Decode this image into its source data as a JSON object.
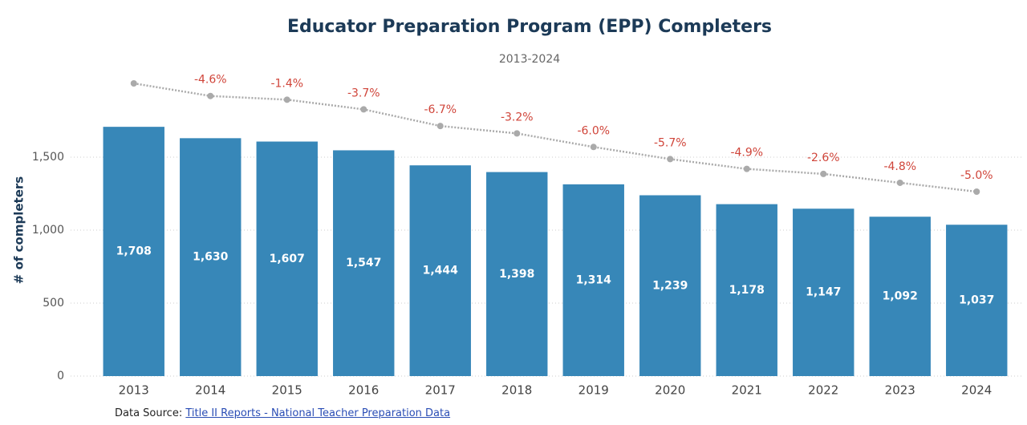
{
  "chart_data": {
    "type": "bar",
    "title": "Educator Preparation Program (EPP) Completers",
    "subtitle": "2013-2024",
    "y_label": "# of completers",
    "categories": [
      "2013",
      "2014",
      "2015",
      "2016",
      "2017",
      "2018",
      "2019",
      "2020",
      "2021",
      "2022",
      "2023",
      "2024"
    ],
    "series": [
      {
        "type": "bar",
        "color": "#3787b8",
        "values": [
          1708,
          1630,
          1607,
          1547,
          1444,
          1398,
          1314,
          1239,
          1178,
          1147,
          1092,
          1037
        ],
        "value_labels": [
          "1,708",
          "1,630",
          "1,607",
          "1,547",
          "1,444",
          "1,398",
          "1,314",
          "1,239",
          "1,178",
          "1,147",
          "1,092",
          "1,037"
        ]
      },
      {
        "type": "line",
        "axis": "y2",
        "color": "#aaaaaa",
        "values": [
          1708,
          1630,
          1607,
          1547,
          1444,
          1398,
          1314,
          1239,
          1178,
          1147,
          1092,
          1037
        ],
        "change_labels": [
          null,
          "-4.6%",
          "-1.4%",
          "-3.7%",
          "-6.7%",
          "-3.2%",
          "-6.0%",
          "-5.7%",
          "-4.9%",
          "-2.6%",
          "-4.8%",
          "-5.0%"
        ],
        "change_color": "#d0453a"
      }
    ],
    "ylim": [
      0,
      2000
    ],
    "yticks": [
      0,
      500,
      {
        "value": 1000,
        "label": "1,000"
      },
      {
        "value": 1500,
        "label": "1,500"
      }
    ],
    "y2lim": [
      -106,
      1703
    ],
    "grid": true,
    "source_prefix": "Data Source:",
    "source_link": "Title II Reports - National Teacher Preparation Data"
  }
}
